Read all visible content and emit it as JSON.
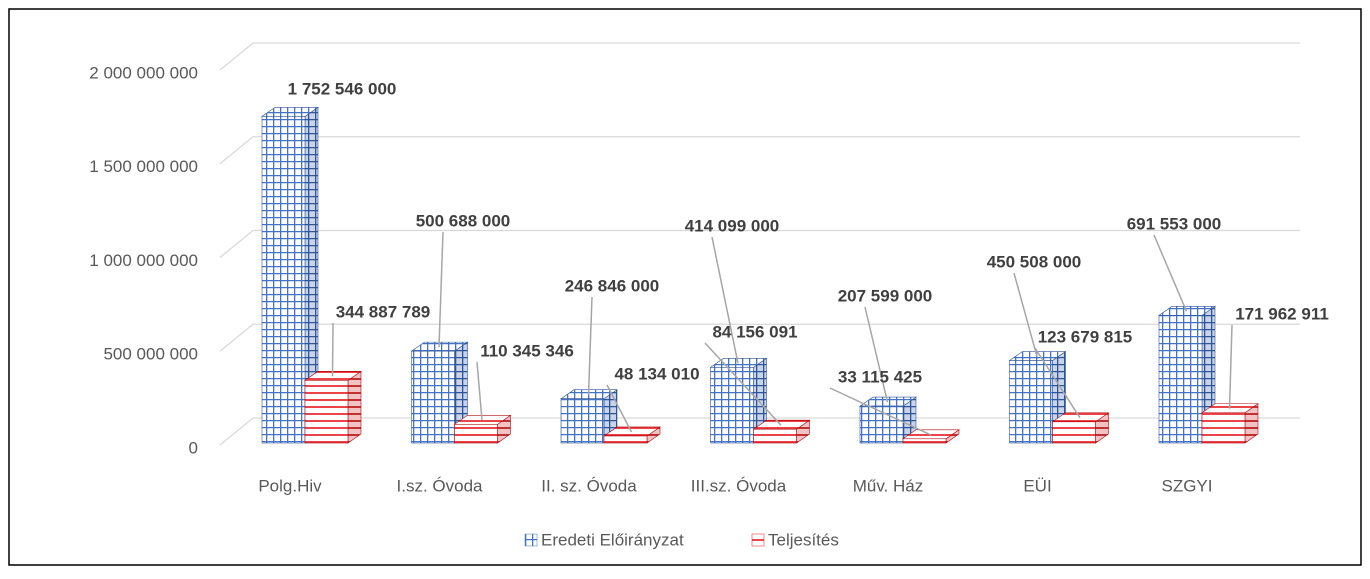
{
  "chart_data": {
    "type": "bar3d",
    "categories": [
      "Polg.Hiv",
      "I.sz. Óvoda",
      "II. sz. Óvoda",
      "III.sz. Óvoda",
      "Műv. Ház",
      "EÜI",
      "SZGYI"
    ],
    "series": [
      {
        "name": "Eredeti Előirányzat",
        "color": "#4472c4",
        "values": [
          1752546000,
          500688000,
          246846000,
          414099000,
          207599000,
          450508000,
          691553000
        ],
        "value_labels": [
          "1 752 546 000",
          "500 688 000",
          "246 846 000",
          "414 099 000",
          "207 599 000",
          "450 508 000",
          "691 553 000"
        ]
      },
      {
        "name": "Teljesítés",
        "color": "#e8161b",
        "values": [
          344887789,
          110345346,
          48134010,
          84156091,
          33115425,
          123679815,
          171962911
        ],
        "value_labels": [
          "344 887 789",
          "110 345 346",
          "48 134 010",
          "84 156 091",
          "33 115 425",
          "123 679 815",
          "171 962 911"
        ]
      }
    ],
    "ylim": [
      0,
      2000000000
    ],
    "yticks": [
      0,
      {
        "value": 500000000,
        "label": "500 000 000"
      },
      {
        "value": 1000000000,
        "label": "1 000 000 000"
      },
      {
        "value": 1500000000,
        "label": "1 500 000 000"
      },
      {
        "value": 2000000000,
        "label": "2 000 000 000"
      }
    ],
    "grid": true,
    "legend": "bottom"
  }
}
